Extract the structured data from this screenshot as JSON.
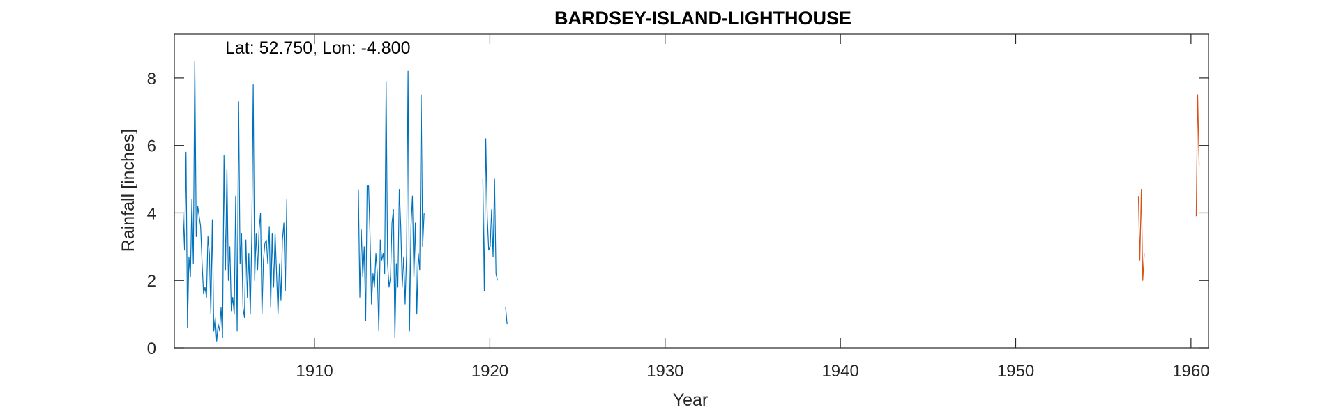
{
  "chart_data": {
    "type": "line",
    "title": "BARDSEY-ISLAND-LIGHTHOUSE",
    "annotation": "Lat: 52.750, Lon: -4.800",
    "xlabel": "Year",
    "ylabel": "Rainfall [inches]",
    "xlim": [
      1902.0,
      1961.0
    ],
    "ylim": [
      0,
      9.3
    ],
    "xticks": [
      1910,
      1920,
      1930,
      1940,
      1950,
      1960
    ],
    "yticks": [
      0,
      2,
      4,
      6,
      8
    ],
    "grid": false,
    "colors": {
      "series1": "#0072BD",
      "series2": "#D95319",
      "axis": "#262626"
    },
    "series": [
      {
        "segments": [
          {
            "start": 1902.5,
            "step": 0.08333,
            "values": [
              4.0,
              2.9,
              5.8,
              0.6,
              2.7,
              2.1,
              4.4,
              2.5,
              8.5,
              3.3,
              4.2,
              3.9,
              3.6,
              2.5,
              1.6,
              1.8,
              1.5,
              3.3,
              2.8,
              1.0,
              3.8,
              0.5,
              0.9,
              0.2,
              0.7,
              0.5,
              1.2,
              0.3,
              5.7,
              2.3,
              5.3,
              2.0,
              3.0,
              1.1,
              1.5,
              1.0,
              4.5,
              0.5,
              7.3,
              2.5,
              3.4,
              1.2,
              0.9,
              3.2,
              1.5,
              2.8,
              1.0,
              3.3,
              7.8,
              2.0,
              3.4,
              2.3,
              3.5,
              4.0,
              1.0,
              2.6,
              3.1,
              3.2,
              2.5,
              3.6,
              1.2,
              3.4,
              1.8,
              3.4,
              2.2,
              1.0,
              2.5,
              1.4,
              3.2,
              3.7,
              1.7,
              4.4
            ]
          },
          {
            "start": 1912.5,
            "step": 0.08333,
            "values": [
              4.7,
              1.5,
              3.5,
              2.1,
              3.0,
              0.8,
              4.8,
              4.8,
              3.3,
              1.3,
              2.2,
              1.8,
              2.8,
              2.2,
              0.5,
              3.2,
              2.6,
              2.8,
              2.2,
              7.9,
              2.5,
              1.8,
              2.1,
              3.7,
              4.1,
              0.3,
              2.5,
              1.8,
              4.7,
              3.6,
              1.8,
              2.7,
              1.3,
              2.8,
              8.2,
              0.5,
              3.6,
              4.5,
              2.1,
              3.7,
              1.0,
              2.8,
              2.3,
              7.5,
              3.0,
              4.0
            ]
          },
          {
            "start": 1919.6,
            "step": 0.08333,
            "values": [
              5.0,
              1.7,
              6.2,
              3.9,
              2.9,
              3.0,
              4.1,
              2.7,
              5.0,
              2.2,
              2.0
            ]
          },
          {
            "start": 1920.9,
            "step": 0.08333,
            "values": [
              1.2,
              0.7
            ]
          }
        ]
      },
      {
        "segments": [
          {
            "start": 1957.0,
            "step": 0.08333,
            "values": [
              4.5,
              2.6,
              4.7,
              2.0,
              2.8
            ]
          },
          {
            "start": 1960.3,
            "step": 0.08333,
            "values": [
              3.9,
              7.5,
              5.4
            ]
          }
        ]
      }
    ]
  }
}
